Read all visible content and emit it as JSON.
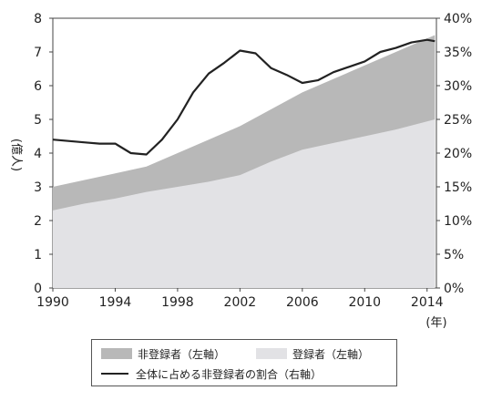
{
  "chart_data": {
    "type": "area",
    "x_label_suffix": "(年)",
    "y_left": {
      "label": "(億人)",
      "min": 0,
      "max": 8,
      "ticks": [
        "0",
        "1",
        "2",
        "3",
        "4",
        "5",
        "6",
        "7",
        "8"
      ]
    },
    "y_right": {
      "min": 0,
      "max": 40,
      "ticks": [
        "0%",
        "5%",
        "10%",
        "15%",
        "20%",
        "25%",
        "30%",
        "35%",
        "40%"
      ]
    },
    "x_ticks": [
      "1990",
      "1994",
      "1998",
      "2002",
      "2006",
      "2010",
      "2014"
    ],
    "x_range": [
      1990,
      2014.6
    ],
    "colors": {
      "non_registered": "#b8b8b8",
      "registered": "#e2e2e5",
      "ratio_line": "#222222"
    },
    "series": [
      {
        "name": "非登録者（左軸）",
        "axis": "left",
        "note": "stacked on top of registered",
        "x": [
          1990,
          1992,
          1994,
          1996,
          1998,
          2000,
          2002,
          2004,
          2006,
          2008,
          2010,
          2012,
          2014.5
        ],
        "values": [
          3.0,
          3.2,
          3.4,
          3.6,
          4.0,
          4.4,
          4.8,
          5.3,
          5.8,
          6.2,
          6.6,
          7.0,
          7.5
        ]
      },
      {
        "name": "登録者（左軸）",
        "axis": "left",
        "x": [
          1990,
          1992,
          1994,
          1996,
          1998,
          2000,
          2002,
          2004,
          2006,
          2008,
          2010,
          2012,
          2014.5
        ],
        "values": [
          2.3,
          2.5,
          2.65,
          2.85,
          3.0,
          3.15,
          3.35,
          3.75,
          4.1,
          4.3,
          4.5,
          4.7,
          5.0
        ]
      },
      {
        "name": "全体に占める非登録者の割合（右軸）",
        "axis": "right",
        "x": [
          1990,
          1992,
          1993,
          1994,
          1995,
          1996,
          1997,
          1998,
          1999,
          2000,
          2001,
          2002,
          2003,
          2004,
          2005,
          2006,
          2007,
          2008,
          2009,
          2010,
          2011,
          2012,
          2013,
          2014,
          2014.5
        ],
        "values": [
          22.0,
          21.6,
          21.4,
          21.4,
          20.0,
          19.8,
          22.0,
          25.0,
          29.0,
          31.8,
          33.4,
          35.2,
          34.8,
          32.6,
          31.6,
          30.4,
          30.8,
          32.0,
          32.8,
          33.6,
          35.0,
          35.6,
          36.4,
          36.8,
          36.6
        ]
      }
    ]
  },
  "legend": {
    "non_registered": "非登録者（左軸）",
    "registered": "登録者（左軸）",
    "ratio": "全体に占める非登録者の割合（右軸）"
  }
}
